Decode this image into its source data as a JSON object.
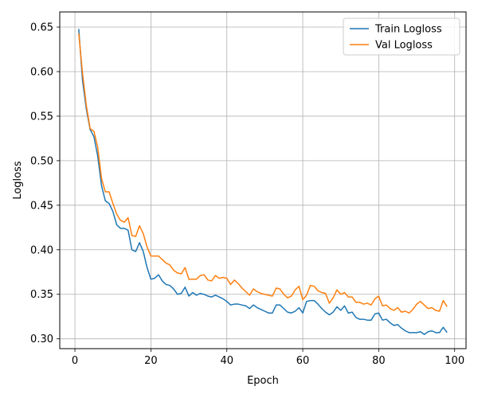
{
  "chart_data": {
    "type": "line",
    "title": "",
    "xlabel": "Epoch",
    "ylabel": "Logloss",
    "xlim": [
      -4,
      103
    ],
    "ylim": [
      0.289,
      0.667
    ],
    "xticks": [
      0,
      20,
      40,
      60,
      80,
      100
    ],
    "yticks": [
      0.3,
      0.35,
      0.4,
      0.45,
      0.5,
      0.55,
      0.6,
      0.65
    ],
    "ytick_labels": [
      "0.30",
      "0.35",
      "0.40",
      "0.45",
      "0.50",
      "0.55",
      "0.60",
      "0.65"
    ],
    "grid": true,
    "legend_position": "top-right",
    "x": [
      1,
      2,
      3,
      4,
      5,
      6,
      7,
      8,
      9,
      10,
      11,
      12,
      13,
      14,
      15,
      16,
      17,
      18,
      19,
      20,
      21,
      22,
      23,
      24,
      25,
      26,
      27,
      28,
      29,
      30,
      31,
      32,
      33,
      34,
      35,
      36,
      37,
      38,
      39,
      40,
      41,
      42,
      43,
      44,
      45,
      46,
      47,
      48,
      49,
      50,
      51,
      52,
      53,
      54,
      55,
      56,
      57,
      58,
      59,
      60,
      61,
      62,
      63,
      64,
      65,
      66,
      67,
      68,
      69,
      70,
      71,
      72,
      73,
      74,
      75,
      76,
      77,
      78,
      79,
      80,
      81,
      82,
      83,
      84,
      85,
      86,
      87,
      88,
      89,
      90,
      91,
      92,
      93,
      94,
      95,
      96,
      97,
      98
    ],
    "series": [
      {
        "name": "Train Logloss",
        "color": "#1f77b4",
        "values": [
          0.648,
          0.59,
          0.558,
          0.535,
          0.527,
          0.505,
          0.472,
          0.455,
          0.452,
          0.443,
          0.428,
          0.424,
          0.424,
          0.422,
          0.4,
          0.398,
          0.408,
          0.398,
          0.38,
          0.367,
          0.368,
          0.372,
          0.365,
          0.361,
          0.36,
          0.356,
          0.35,
          0.351,
          0.358,
          0.348,
          0.352,
          0.349,
          0.351,
          0.35,
          0.348,
          0.347,
          0.349,
          0.347,
          0.345,
          0.342,
          0.338,
          0.339,
          0.339,
          0.338,
          0.337,
          0.334,
          0.338,
          0.335,
          0.333,
          0.331,
          0.329,
          0.329,
          0.338,
          0.338,
          0.334,
          0.33,
          0.329,
          0.331,
          0.335,
          0.329,
          0.342,
          0.343,
          0.343,
          0.339,
          0.334,
          0.33,
          0.327,
          0.33,
          0.336,
          0.332,
          0.337,
          0.329,
          0.33,
          0.324,
          0.322,
          0.322,
          0.321,
          0.321,
          0.328,
          0.329,
          0.321,
          0.322,
          0.318,
          0.315,
          0.316,
          0.312,
          0.309,
          0.307,
          0.307,
          0.307,
          0.308,
          0.305,
          0.308,
          0.309,
          0.307,
          0.307,
          0.313,
          0.307
        ]
      },
      {
        "name": "Val Logloss",
        "color": "#ff7f0e",
        "values": [
          0.643,
          0.598,
          0.562,
          0.536,
          0.533,
          0.515,
          0.48,
          0.465,
          0.465,
          0.452,
          0.44,
          0.433,
          0.431,
          0.436,
          0.416,
          0.415,
          0.427,
          0.418,
          0.403,
          0.393,
          0.393,
          0.393,
          0.389,
          0.385,
          0.383,
          0.377,
          0.374,
          0.373,
          0.38,
          0.367,
          0.367,
          0.367,
          0.371,
          0.372,
          0.366,
          0.365,
          0.371,
          0.368,
          0.369,
          0.368,
          0.361,
          0.366,
          0.362,
          0.357,
          0.353,
          0.349,
          0.356,
          0.353,
          0.351,
          0.35,
          0.349,
          0.348,
          0.357,
          0.356,
          0.35,
          0.346,
          0.348,
          0.355,
          0.359,
          0.344,
          0.349,
          0.36,
          0.359,
          0.354,
          0.352,
          0.351,
          0.34,
          0.346,
          0.355,
          0.35,
          0.352,
          0.347,
          0.347,
          0.341,
          0.341,
          0.339,
          0.34,
          0.338,
          0.345,
          0.348,
          0.337,
          0.338,
          0.334,
          0.332,
          0.335,
          0.33,
          0.331,
          0.329,
          0.333,
          0.339,
          0.342,
          0.338,
          0.334,
          0.335,
          0.332,
          0.331,
          0.343,
          0.336
        ]
      }
    ]
  }
}
